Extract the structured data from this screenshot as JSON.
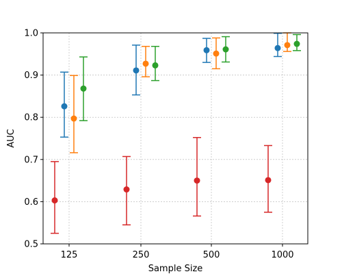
{
  "chart_data": {
    "type": "scatter",
    "title": "",
    "xlabel": "Sample Size",
    "ylabel": "AUC",
    "categories": [
      "125",
      "250",
      "500",
      "1000"
    ],
    "ylim": [
      0.5,
      1.0
    ],
    "yticks": [
      "0.5",
      "0.6",
      "0.7",
      "0.8",
      "0.9",
      "1.0"
    ],
    "grid": true,
    "legend": "none",
    "series": [
      {
        "color": "#1f77b4",
        "values": [
          0.826,
          0.911,
          0.959,
          0.964
        ],
        "err_low": [
          0.753,
          0.853,
          0.93,
          0.944
        ],
        "err_high": [
          0.907,
          0.971,
          0.987,
          0.999
        ]
      },
      {
        "color": "#ff7f0e",
        "values": [
          0.797,
          0.927,
          0.951,
          0.971
        ],
        "err_low": [
          0.716,
          0.896,
          0.915,
          0.956
        ],
        "err_high": [
          0.899,
          0.968,
          0.988,
          1.0
        ]
      },
      {
        "color": "#2ca02c",
        "values": [
          0.868,
          0.923,
          0.961,
          0.974
        ],
        "err_low": [
          0.792,
          0.887,
          0.931,
          0.958
        ],
        "err_high": [
          0.943,
          0.968,
          0.991,
          0.996
        ]
      },
      {
        "color": "#d62728",
        "values": [
          0.603,
          0.629,
          0.65,
          0.651
        ],
        "err_low": [
          0.525,
          0.545,
          0.566,
          0.575
        ],
        "err_high": [
          0.695,
          0.707,
          0.752,
          0.733
        ]
      }
    ]
  }
}
